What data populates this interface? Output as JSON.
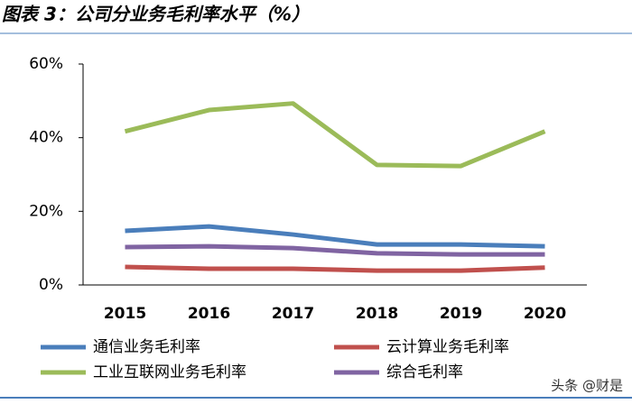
{
  "chart_data": {
    "type": "line",
    "title": "图表 3：公司分业务毛利率水平（%）",
    "categories": [
      "2015",
      "2016",
      "2017",
      "2018",
      "2019",
      "2020"
    ],
    "series": [
      {
        "name": "通信业务毛利率",
        "color": "#4a7ebb",
        "values": [
          14.7,
          15.9,
          13.7,
          11.0,
          11.0,
          10.5
        ]
      },
      {
        "name": "云计算业务毛利率",
        "color": "#c0504d",
        "values": [
          4.9,
          4.4,
          4.4,
          3.9,
          3.9,
          4.7
        ]
      },
      {
        "name": "工业互联网业务毛利率",
        "color": "#9bbb59",
        "values": [
          41.7,
          47.5,
          49.3,
          32.6,
          32.3,
          41.7
        ]
      },
      {
        "name": "综合毛利率",
        "color": "#8064a2",
        "values": [
          10.3,
          10.5,
          10.0,
          8.6,
          8.3,
          8.3
        ]
      }
    ],
    "ylim": [
      0,
      60
    ],
    "yticks": [
      {
        "value": 0,
        "label": "0%"
      },
      {
        "value": 20,
        "label": "20%"
      },
      {
        "value": 40,
        "label": "40%"
      },
      {
        "value": 60,
        "label": "60%"
      }
    ],
    "watermark": "头条 @财是"
  }
}
